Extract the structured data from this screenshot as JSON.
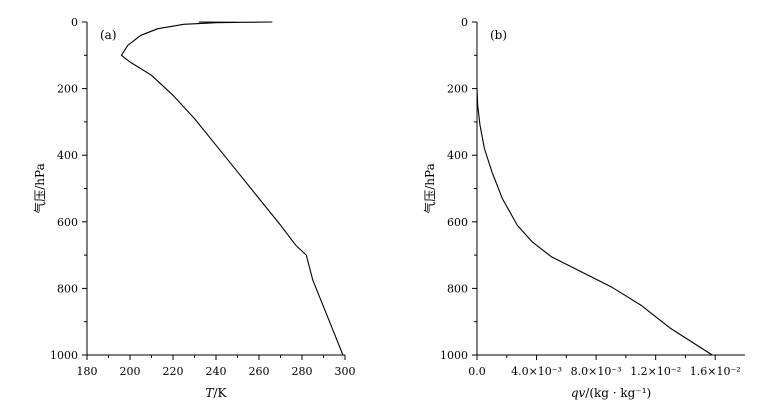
{
  "chart_data": [
    {
      "type": "line",
      "panel_label": "(a)",
      "xlabel_var": "T",
      "xlabel_rest": "/K",
      "ylabel": "气压/hPa",
      "xlim": [
        180,
        300
      ],
      "ylim": [
        1000,
        0
      ],
      "y_inverted": true,
      "xticks": [
        180,
        200,
        220,
        240,
        260,
        280,
        300
      ],
      "xtick_labels": [
        "180",
        "200",
        "220",
        "240",
        "260",
        "280",
        "300"
      ],
      "yticks": [
        0,
        200,
        400,
        600,
        800,
        1000
      ],
      "ytick_labels": [
        "0",
        "200",
        "400",
        "600",
        "800",
        "1000"
      ],
      "series": [
        {
          "points": [
            [
              232,
              0
            ],
            [
              252,
              1
            ],
            [
              266,
              0
            ],
            [
              252,
              1
            ],
            [
              240,
              2
            ],
            [
              225,
              7
            ],
            [
              213,
              20
            ],
            [
              205,
              40
            ],
            [
              199,
              70
            ],
            [
              196,
              100
            ],
            [
              200,
              120
            ],
            [
              210,
              160
            ],
            [
              220,
              220
            ],
            [
              230,
              290
            ],
            [
              240,
              370
            ],
            [
              250,
              450
            ],
            [
              260,
              530
            ],
            [
              270,
              610
            ],
            [
              277,
              670
            ],
            [
              282,
              700
            ],
            [
              285,
              775
            ],
            [
              290,
              855
            ],
            [
              295,
              935
            ],
            [
              299,
              1000
            ]
          ]
        }
      ]
    },
    {
      "type": "line",
      "panel_label": "(b)",
      "xlabel_var": "qv",
      "xlabel_rest": "/(kg · kg⁻¹)",
      "ylabel": "气压/hPa",
      "xlim": [
        0,
        0.018
      ],
      "ylim": [
        1000,
        0
      ],
      "y_inverted": true,
      "xticks": [
        0,
        0.004,
        0.008,
        0.012,
        0.016
      ],
      "xtick_labels": [
        "0.0",
        "4.0×10⁻³",
        "8.0×10⁻³",
        "1.2×10⁻²",
        "1.6×10⁻²"
      ],
      "yticks": [
        0,
        200,
        400,
        600,
        800,
        1000
      ],
      "ytick_labels": [
        "0",
        "200",
        "400",
        "600",
        "800",
        "1000"
      ],
      "series": [
        {
          "points": [
            [
              0.0,
              200
            ],
            [
              5e-05,
              250
            ],
            [
              0.0002,
              310
            ],
            [
              0.0005,
              380
            ],
            [
              0.001,
              450
            ],
            [
              0.0017,
              530
            ],
            [
              0.0027,
              610
            ],
            [
              0.0037,
              660
            ],
            [
              0.005,
              705
            ],
            [
              0.007,
              750
            ],
            [
              0.009,
              795
            ],
            [
              0.011,
              850
            ],
            [
              0.013,
              920
            ],
            [
              0.0158,
              1000
            ]
          ]
        }
      ]
    }
  ]
}
